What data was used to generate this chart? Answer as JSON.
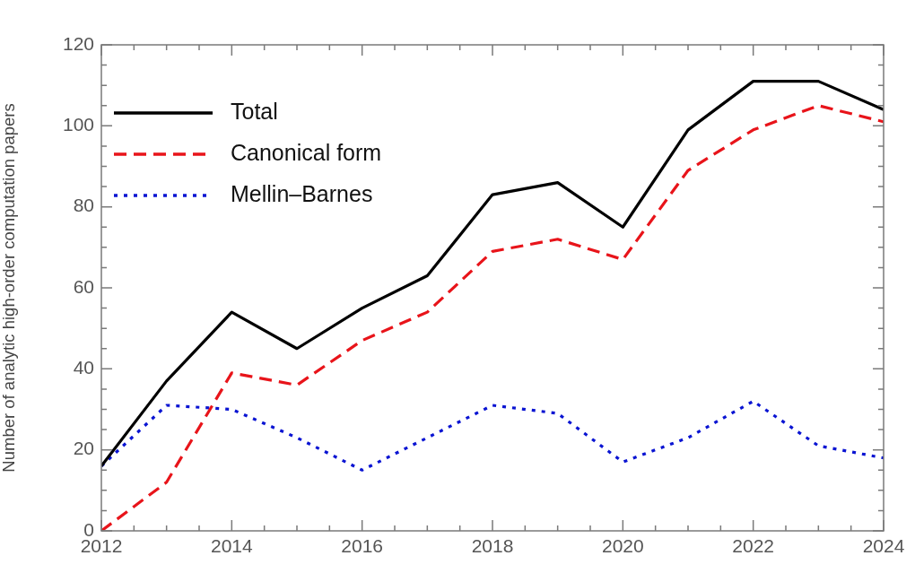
{
  "chart_data": {
    "type": "line",
    "ylabel": "Number of analytic high-order computation papers",
    "x": [
      2012,
      2013,
      2014,
      2015,
      2016,
      2017,
      2018,
      2019,
      2020,
      2021,
      2022,
      2023,
      2024
    ],
    "series": [
      {
        "name": "Total",
        "color": "#000000",
        "line_style": "solid",
        "values": [
          16,
          37,
          54,
          45,
          55,
          63,
          83,
          86,
          75,
          99,
          111,
          111,
          104
        ]
      },
      {
        "name": "Canonical form",
        "color": "#e8141a",
        "line_style": "dashed",
        "values": [
          0,
          12,
          39,
          36,
          47,
          54,
          69,
          72,
          67,
          89,
          99,
          105,
          101
        ]
      },
      {
        "name": "Mellin–Barnes",
        "color": "#0a14d2",
        "line_style": "dotted",
        "values": [
          16,
          31,
          30,
          23,
          15,
          23,
          31,
          29,
          17,
          23,
          32,
          21,
          18
        ]
      }
    ],
    "xlim": [
      2012,
      2024
    ],
    "xticks": [
      2012,
      2014,
      2016,
      2018,
      2020,
      2022,
      2024
    ],
    "ylim": [
      0,
      120
    ],
    "yticks": [
      0,
      20,
      40,
      60,
      80,
      100,
      120
    ],
    "grid": false,
    "legend": "top left",
    "marker": "none"
  }
}
